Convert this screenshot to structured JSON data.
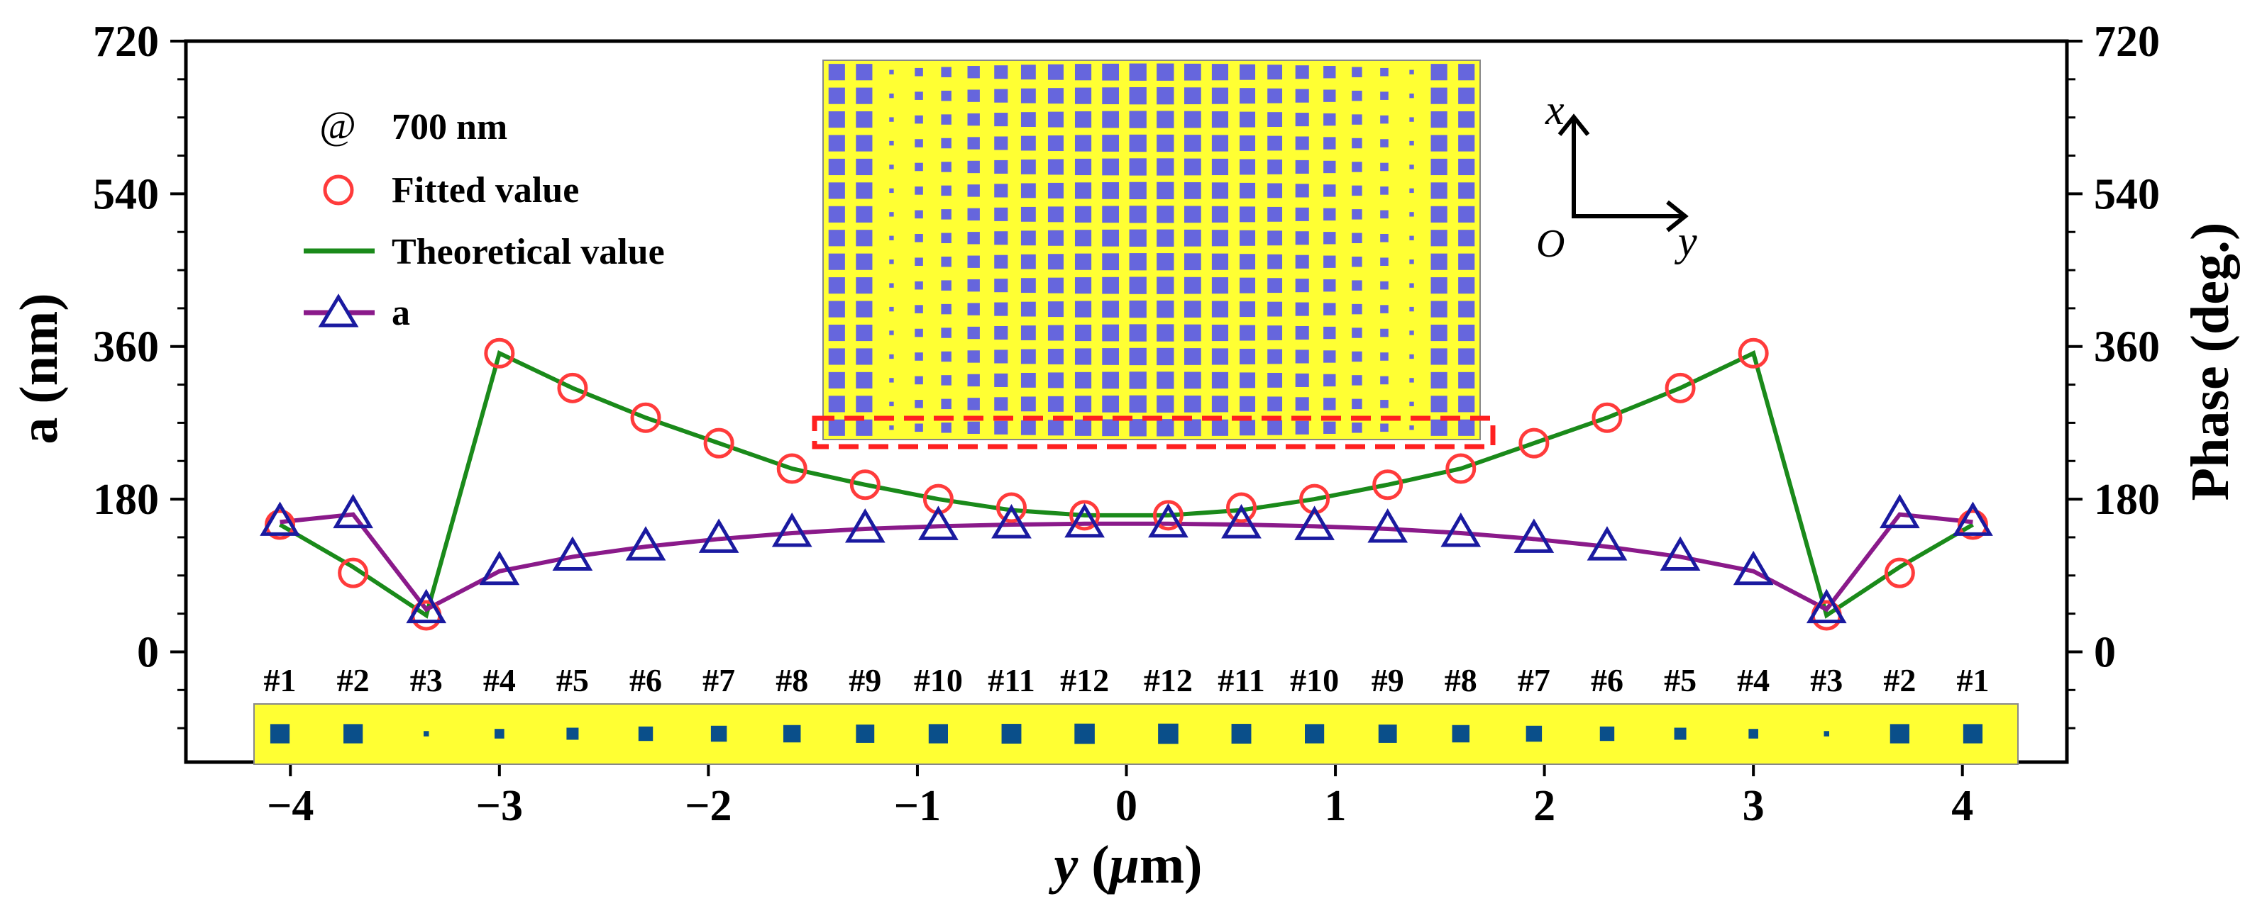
{
  "chart_data": {
    "type": "line",
    "xlabel_italic": "y",
    "xlabel_rest": " (",
    "xlabel_mu": "μ",
    "xlabel_end": "m)",
    "ylabel_left": "a (nm)",
    "ylabel_right": "Phase (deg.)",
    "xlim": [
      -4.5,
      4.5
    ],
    "ylim_left": [
      -130,
      720
    ],
    "ylim_right": [
      -130,
      720
    ],
    "xticks": [
      -4,
      -3,
      -2,
      -1,
      0,
      1,
      2,
      3,
      4
    ],
    "xtick_labels": [
      "−4",
      "−3",
      "−2",
      "−1",
      "0",
      "1",
      "2",
      "3",
      "4"
    ],
    "yticks": [
      0,
      180,
      360,
      540,
      720
    ],
    "ytick_labels": [
      "0",
      "180",
      "360",
      "540",
      "720"
    ],
    "x": [
      -4.05,
      -3.7,
      -3.35,
      -3.0,
      -2.65,
      -2.3,
      -1.95,
      -1.6,
      -1.25,
      -0.9,
      -0.55,
      -0.2,
      0.2,
      0.55,
      0.9,
      1.25,
      1.6,
      1.95,
      2.3,
      2.65,
      3.0,
      3.35,
      3.7,
      4.05
    ],
    "labels": [
      "#1",
      "#2",
      "#3",
      "#4",
      "#5",
      "#6",
      "#7",
      "#8",
      "#9",
      "#10",
      "#11",
      "#12",
      "#12",
      "#11",
      "#10",
      "#9",
      "#8",
      "#7",
      "#6",
      "#5",
      "#4",
      "#3",
      "#2",
      "#1"
    ],
    "series": [
      {
        "name": "Fitted value",
        "marker": "circle",
        "color": "#ff3b3b",
        "values": [
          150,
          93,
          43,
          352,
          311,
          276,
          246,
          216,
          197,
          180,
          170,
          161,
          161,
          170,
          180,
          197,
          216,
          246,
          276,
          311,
          352,
          43,
          93,
          150
        ]
      },
      {
        "name": "Theoretical value",
        "line": true,
        "color": "#1a8a1a",
        "values": [
          150,
          100,
          43,
          352,
          311,
          276,
          246,
          216,
          197,
          180,
          167,
          161,
          161,
          167,
          180,
          197,
          216,
          246,
          276,
          311,
          352,
          43,
          100,
          150
        ]
      },
      {
        "name": "a",
        "marker": "triangle",
        "color": "#1a1aa0",
        "line_color": "#8a1a8a",
        "values": [
          153,
          162,
          50,
          95,
          112,
          124,
          133,
          140,
          145,
          148,
          150,
          151,
          151,
          150,
          148,
          145,
          140,
          133,
          124,
          112,
          95,
          50,
          162,
          153
        ]
      }
    ],
    "legend": {
      "at_symbol": "@",
      "wavelength": "700 nm",
      "placement": "top-left"
    },
    "strip_sizes": [
      0.8,
      0.8,
      0.22,
      0.4,
      0.5,
      0.6,
      0.66,
      0.72,
      0.76,
      0.8,
      0.82,
      0.84,
      0.84,
      0.82,
      0.8,
      0.76,
      0.72,
      0.66,
      0.6,
      0.5,
      0.4,
      0.22,
      0.8,
      0.8
    ],
    "colors": {
      "metasurface_bg": "#ffff33",
      "pillar": "#6666dd",
      "strip_pillar": "#0a4f8a",
      "highlight": "#ff2020"
    },
    "inset": {
      "axis_x": "x",
      "axis_y": "y",
      "origin": "O"
    }
  }
}
